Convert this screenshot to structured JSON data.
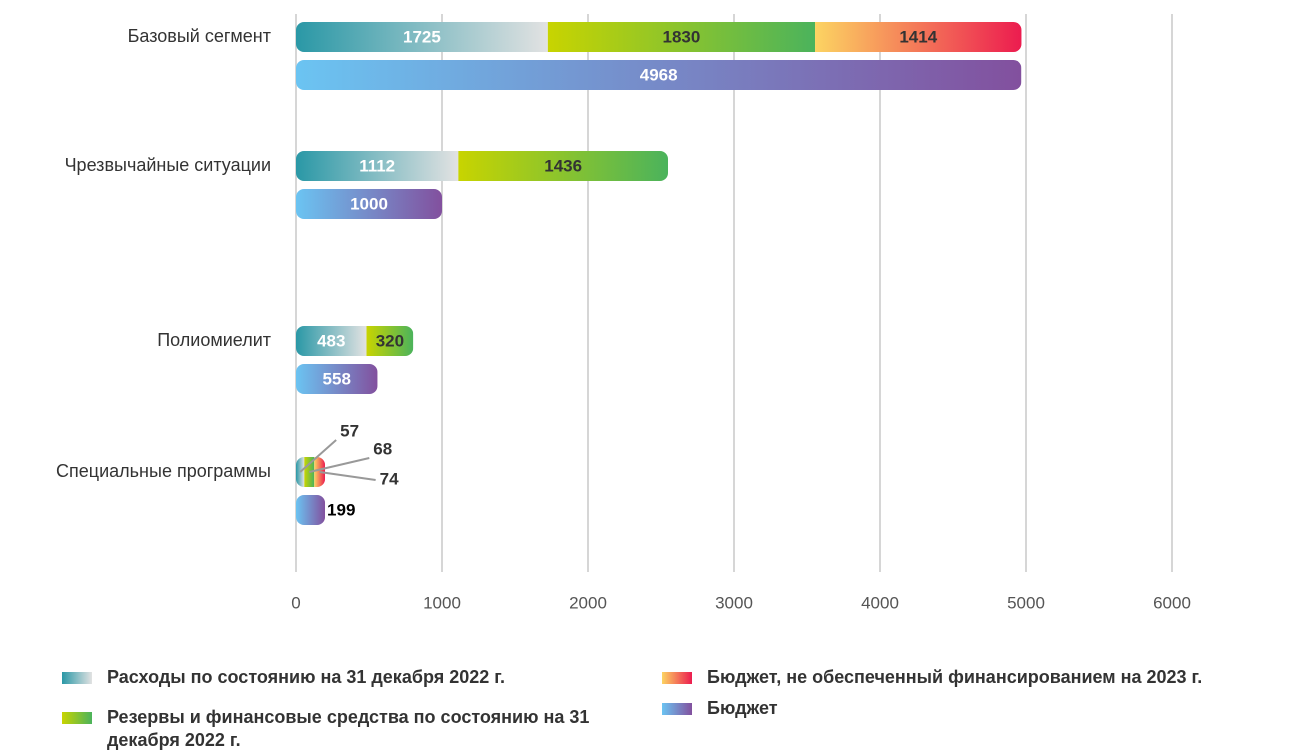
{
  "chart_data": {
    "type": "bar",
    "orientation": "horizontal",
    "categories": [
      "Базовый сегмент",
      "Чрезвычайные ситуации",
      "Полиомиелит",
      "Специальные программы"
    ],
    "series": [
      {
        "name": "Расходы по состоянию на 31 декабря 2022 г.",
        "color": [
          "#2a98a6",
          "#e2e2e2"
        ],
        "label_color": "#ffffff",
        "group": 0,
        "values": [
          1725,
          1112,
          483,
          57
        ]
      },
      {
        "name": "Резервы и финансовые средства по состоянию на 31 декабря 2022 г.",
        "color": [
          "#c8d400",
          "#4bb35c"
        ],
        "label_color": "#333333",
        "group": 0,
        "values": [
          1830,
          1436,
          320,
          68
        ]
      },
      {
        "name": "Бюджет, не обеспеченный финансированием на 2023 г.",
        "color": [
          "#fcd462",
          "#ec1c4f"
        ],
        "label_color": "#333333",
        "group": 0,
        "values": [
          1414,
          null,
          null,
          74
        ]
      },
      {
        "name": "Бюджет",
        "color": [
          "#6bc4f2",
          "#82509e"
        ],
        "label_color": "#ffffff",
        "group": 1,
        "values": [
          4968,
          1000,
          558,
          199
        ]
      }
    ],
    "xlim": [
      0,
      6000
    ],
    "xticks": [
      0,
      1000,
      2000,
      3000,
      4000,
      5000,
      6000
    ],
    "grid": true
  }
}
